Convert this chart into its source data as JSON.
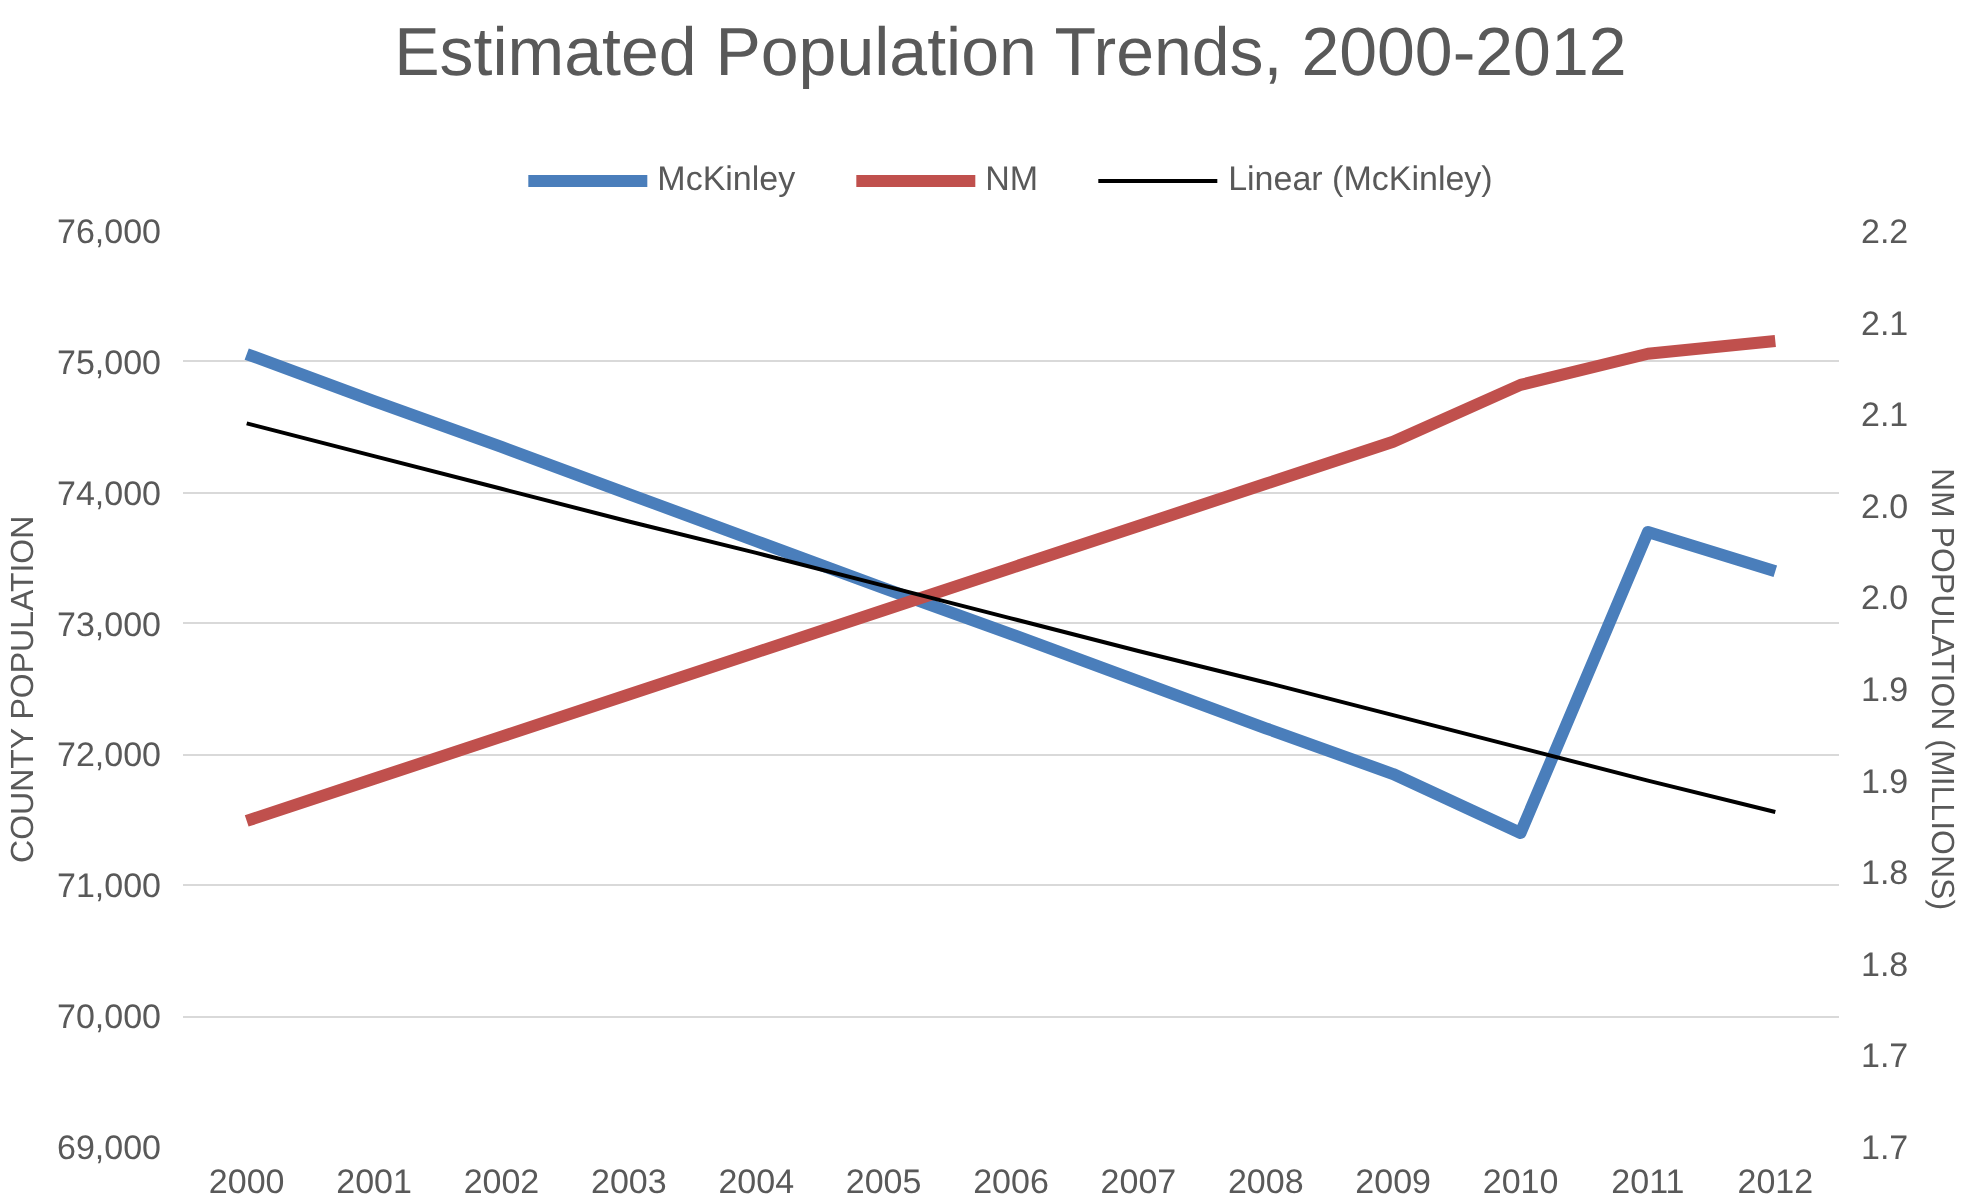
{
  "chart_data": {
    "type": "line",
    "title": "Estimated Population Trends, 2000-2012",
    "categories": [
      "2000",
      "2001",
      "2002",
      "2003",
      "2004",
      "2005",
      "2006",
      "2007",
      "2008",
      "2009",
      "2010",
      "2011",
      "2012"
    ],
    "series": [
      {
        "name": "McKinley",
        "color": "#4a7ebb",
        "values": [
          75060,
          74700,
          74350,
          73990,
          73630,
          73270,
          72920,
          72560,
          72200,
          71850,
          71400,
          73700,
          73400
        ]
      },
      {
        "name": "NM",
        "color": "#c0504d",
        "axis": "y2",
        "values": [
          1.878,
          1.901,
          1.924,
          1.947,
          1.97,
          1.993,
          2.016,
          2.039,
          2.062,
          2.085,
          2.116,
          2.133,
          2.14
        ]
      },
      {
        "name": "Linear (McKinley)",
        "color": "#000000",
        "values": [
          74530,
          74280,
          74030,
          73780,
          73540,
          73290,
          73040,
          72790,
          72550,
          72300,
          72050,
          71800,
          71560
        ]
      }
    ],
    "ylabel": "COUNTY POPULATION",
    "y2label": "NM POPULATION (MILLIONS)",
    "ylim": [
      69000,
      76000
    ],
    "yticks": [
      {
        "value": 69000,
        "label": "69,000"
      },
      {
        "value": 70000,
        "label": "70,000"
      },
      {
        "value": 71000,
        "label": "71,000"
      },
      {
        "value": 72000,
        "label": "72,000"
      },
      {
        "value": 73000,
        "label": "73,000"
      },
      {
        "value": 74000,
        "label": "74,000"
      },
      {
        "value": 75000,
        "label": "75,000"
      },
      {
        "value": 76000,
        "label": "76,000"
      }
    ],
    "y2lim": [
      1.7,
      2.2
    ],
    "y2ticks": [
      {
        "value": 1.7,
        "label": "1.7"
      },
      {
        "value": 1.75,
        "label": "1.7"
      },
      {
        "value": 1.8,
        "label": "1.8"
      },
      {
        "value": 1.85,
        "label": "1.8"
      },
      {
        "value": 1.9,
        "label": "1.9"
      },
      {
        "value": 1.95,
        "label": "1.9"
      },
      {
        "value": 2.0,
        "label": "2.0"
      },
      {
        "value": 2.05,
        "label": "2.0"
      },
      {
        "value": 2.1,
        "label": "2.1"
      },
      {
        "value": 2.15,
        "label": "2.1"
      },
      {
        "value": 2.2,
        "label": "2.2"
      }
    ],
    "grid": "y",
    "legend": "top",
    "marker": "none"
  }
}
